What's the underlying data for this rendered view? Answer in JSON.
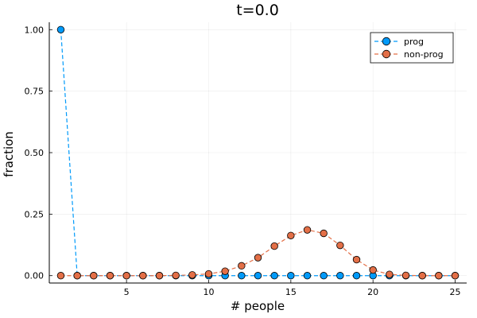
{
  "chart_data": {
    "type": "line",
    "title": "t=0.0",
    "xlabel": "# people",
    "ylabel": "fraction",
    "xlim": [
      0.3,
      25.7
    ],
    "ylim": [
      -0.03,
      1.03
    ],
    "xticks": [
      5,
      10,
      15,
      20,
      25
    ],
    "yticks": [
      0.0,
      0.25,
      0.5,
      0.75,
      1.0
    ],
    "xtick_labels": [
      "5",
      "10",
      "15",
      "20",
      "25"
    ],
    "ytick_labels": [
      "0.00",
      "0.25",
      "0.50",
      "0.75",
      "1.00"
    ],
    "grid": true,
    "legend_position": "top-right",
    "x": [
      1,
      2,
      3,
      4,
      5,
      6,
      7,
      8,
      9,
      10,
      11,
      12,
      13,
      14,
      15,
      16,
      17,
      18,
      19,
      20,
      21,
      22,
      23,
      24,
      25
    ],
    "series": [
      {
        "name": "prog",
        "color": "#009AFA",
        "line_style": "dashed",
        "marker": "circle",
        "values": [
          1.0,
          0,
          0,
          0,
          0,
          0,
          0,
          0,
          0,
          0,
          0,
          0,
          0,
          0,
          0,
          0,
          0,
          0,
          0,
          0,
          0,
          0,
          0,
          0,
          0
        ]
      },
      {
        "name": "non-prog",
        "color": "#E36F47",
        "line_style": "dashed",
        "marker": "circle",
        "values": [
          0,
          0,
          0,
          0,
          0,
          0,
          0,
          0.001,
          0.003,
          0.007,
          0.018,
          0.04,
          0.073,
          0.12,
          0.163,
          0.186,
          0.172,
          0.123,
          0.065,
          0.023,
          0.005,
          0.001,
          0,
          0,
          0
        ]
      }
    ]
  }
}
